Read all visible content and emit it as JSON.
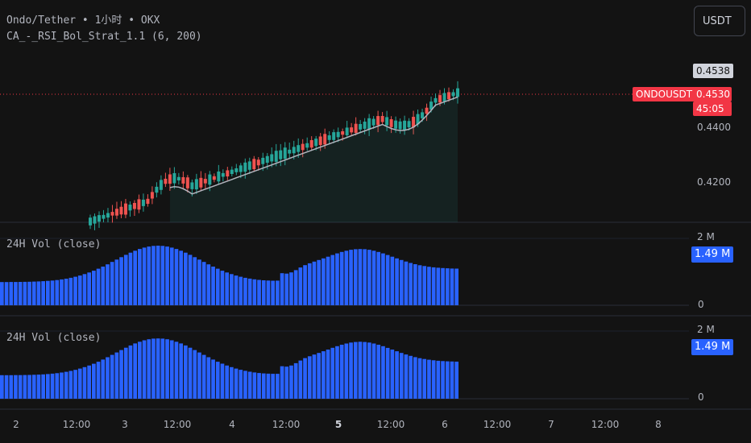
{
  "header": {
    "symbol_title": "Ondo/Tether • 1小时 • OKX",
    "indicator_title": "CA_-_RSI_Bol_Strat_1.1 (6, 200)",
    "currency_button": "USDT"
  },
  "price_axis": {
    "ticks": [
      "0.4200",
      "0.4400"
    ],
    "high_label": "0.4538",
    "last_price": "0.4530",
    "countdown": "45:05",
    "symbol_tag": "ONDOUSDT"
  },
  "volume_panes": [
    {
      "title": "24H Vol (close)",
      "max_label": "2 M",
      "zero_label": "0",
      "current_label": "1.49 M"
    },
    {
      "title": "24H Vol (close)",
      "max_label": "2 M",
      "zero_label": "0",
      "current_label": "1.49 M"
    }
  ],
  "time_axis": {
    "labels": [
      "2",
      "12:00",
      "3",
      "12:00",
      "4",
      "12:00",
      "5",
      "12:00",
      "6",
      "12:00",
      "7",
      "12:00",
      "8"
    ],
    "bold_index": 6
  },
  "colors": {
    "background": "#131313",
    "up_candle": "#26a69a",
    "down_candle": "#ef5350",
    "volume_bar": "#2962ff",
    "price_line": "#f23645",
    "ma_line": "#b2b5be"
  }
}
